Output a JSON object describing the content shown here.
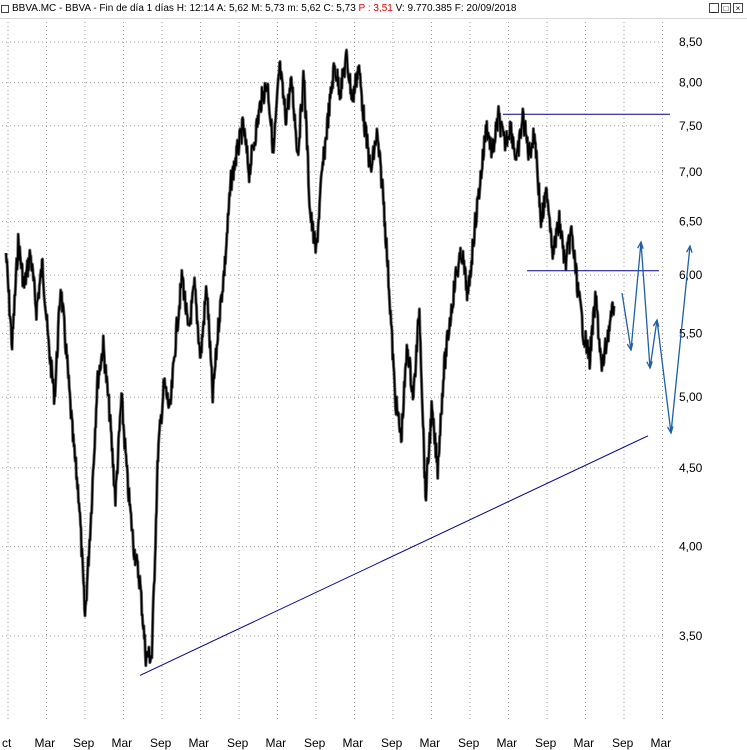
{
  "header": {
    "ticker": "BBVA.MC - BBVA - Fin de día 1 días",
    "hour": "H: 12:14",
    "open": "A: 5,62",
    "max": "M: 5,73",
    "min": "m: 5,62",
    "close": "C: 5,73",
    "pct": "P : 3,51",
    "volume": "V: 9.770.385",
    "date": "F: 20/09/2018",
    "pct_color": "#e00000",
    "controls": [
      "minimize-icon",
      "maximize-icon",
      "close-icon"
    ]
  },
  "chart_data": {
    "type": "line",
    "scale": "log",
    "ylim": [
      3.2,
      8.75
    ],
    "grid": true,
    "yticks": [
      {
        "label": "8,50",
        "v": 8.5
      },
      {
        "label": "8,00",
        "v": 8.0
      },
      {
        "label": "7,50",
        "v": 7.5
      },
      {
        "label": "7,00",
        "v": 7.0
      },
      {
        "label": "6,50",
        "v": 6.5
      },
      {
        "label": "6,00",
        "v": 6.0
      },
      {
        "label": "5,50",
        "v": 5.5
      },
      {
        "label": "5,00",
        "v": 5.0
      },
      {
        "label": "4,50",
        "v": 4.5
      },
      {
        "label": "4,00",
        "v": 4.0
      },
      {
        "label": "3,50",
        "v": 3.5
      }
    ],
    "xticks": [
      "ct",
      "Mar",
      "Sep",
      "Mar",
      "Sep",
      "Mar",
      "Sep",
      "Mar",
      "Sep",
      "Mar",
      "Sep",
      "Mar",
      "Sep",
      "Mar",
      "Sep",
      "Mar",
      "Sep",
      "Mar"
    ],
    "price_color": "#000000",
    "series": [
      {
        "values": [
          6.2,
          5.4,
          6.3,
          5.9,
          6.2,
          5.7,
          6.1,
          5.4,
          5.0,
          5.9,
          5.3,
          4.7,
          4.3,
          3.6,
          4.2,
          5.1,
          5.4,
          4.9,
          4.3,
          5.0,
          4.4,
          4.0,
          3.8,
          3.4,
          3.4,
          4.6,
          5.1,
          4.9,
          5.5,
          6.0,
          5.5,
          5.9,
          5.3,
          5.9,
          5.0,
          5.6,
          6.1,
          6.9,
          7.2,
          7.5,
          7.0,
          7.4,
          7.8,
          8.0,
          7.2,
          8.2,
          7.6,
          8.0,
          7.2,
          8.1,
          6.6,
          6.2,
          7.0,
          7.6,
          8.2,
          7.9,
          8.3,
          7.8,
          8.2,
          7.5,
          7.0,
          7.4,
          6.8,
          5.9,
          5.0,
          4.7,
          5.4,
          5.0,
          5.7,
          4.3,
          4.9,
          4.5,
          5.2,
          5.6,
          6.0,
          6.2,
          5.8,
          6.4,
          6.9,
          7.5,
          7.2,
          7.6,
          7.3,
          7.5,
          7.1,
          7.6,
          7.2,
          7.4,
          6.5,
          6.8,
          6.2,
          6.5,
          6.1,
          6.4,
          5.9,
          5.5,
          5.3,
          5.8,
          5.2,
          5.5,
          5.73
        ]
      }
    ],
    "annotations": {
      "line_color": "#00008b",
      "arrow_color": "#1f5fa8",
      "support_line": [
        [
          3.3,
          4.72
        ]
      ],
      "resistance_levels": [
        7.63,
        6.04
      ]
    }
  }
}
